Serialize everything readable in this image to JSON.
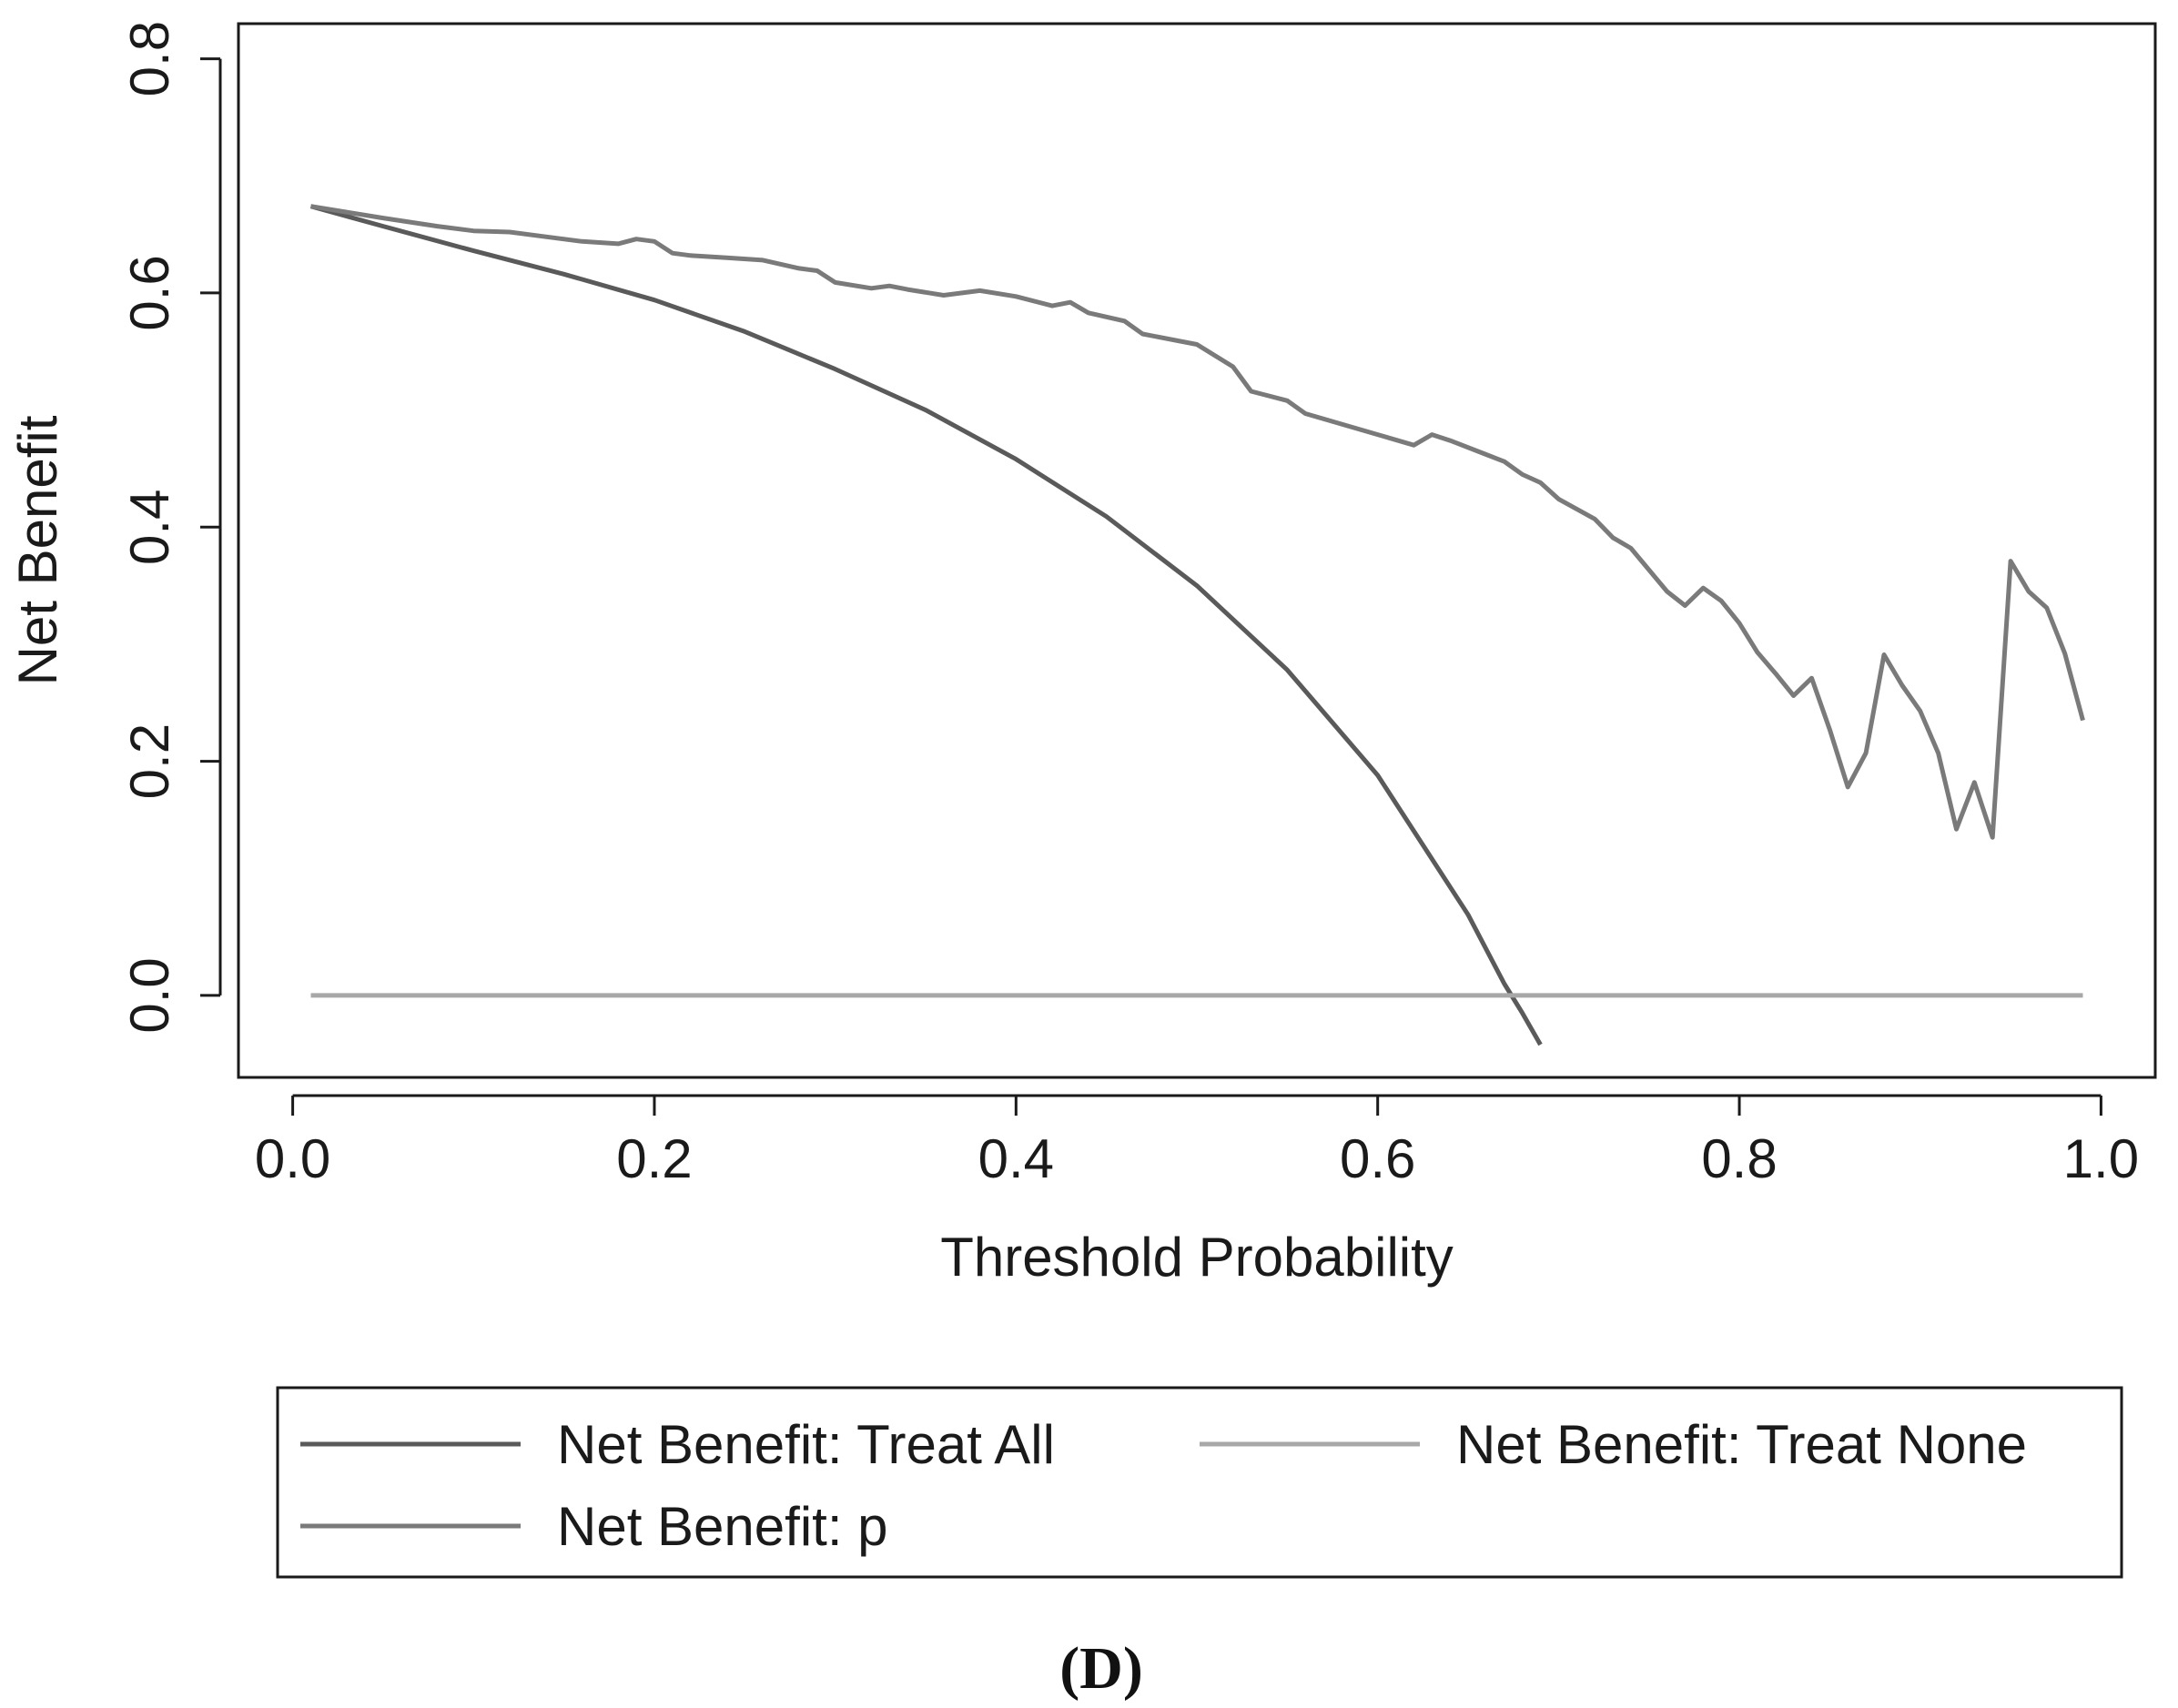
{
  "chart_data": {
    "type": "line",
    "title": "",
    "caption": "(D)",
    "xlabel": "Threshold Probability",
    "ylabel": "Net Benefit",
    "xlim": [
      -0.03,
      1.03
    ],
    "ylim": [
      -0.07,
      0.83
    ],
    "x_ticks": [
      0.0,
      0.2,
      0.4,
      0.6,
      0.8,
      1.0
    ],
    "x_tick_labels": [
      "0.0",
      "0.2",
      "0.4",
      "0.6",
      "0.8",
      "1.0"
    ],
    "y_ticks": [
      0.0,
      0.2,
      0.4,
      0.6,
      0.8
    ],
    "y_tick_labels": [
      "0.0",
      "0.2",
      "0.4",
      "0.6",
      "0.8"
    ],
    "grid": false,
    "legend_position": "bottom",
    "series": [
      {
        "name": "Net Benefit: Treat All",
        "color": "#5a5a5a",
        "x": [
          0.01,
          0.05,
          0.1,
          0.15,
          0.2,
          0.25,
          0.3,
          0.35,
          0.4,
          0.45,
          0.5,
          0.55,
          0.6,
          0.65,
          0.67,
          0.68,
          0.69
        ],
        "y": [
          0.674,
          0.657,
          0.636,
          0.616,
          0.594,
          0.567,
          0.535,
          0.5,
          0.458,
          0.409,
          0.35,
          0.278,
          0.188,
          0.069,
          0.01,
          -0.015,
          -0.042
        ]
      },
      {
        "name": "Net Benefit: Treat None",
        "color": "#a8a8a8",
        "x": [
          0.01,
          0.99
        ],
        "y": [
          0.0,
          0.0
        ]
      },
      {
        "name": "Net Benefit: p",
        "color": "#7a7a7a",
        "x": [
          0.01,
          0.05,
          0.08,
          0.1,
          0.12,
          0.14,
          0.16,
          0.18,
          0.19,
          0.2,
          0.21,
          0.22,
          0.24,
          0.26,
          0.28,
          0.29,
          0.3,
          0.32,
          0.33,
          0.34,
          0.36,
          0.38,
          0.4,
          0.42,
          0.43,
          0.44,
          0.46,
          0.47,
          0.5,
          0.52,
          0.53,
          0.55,
          0.56,
          0.6,
          0.62,
          0.63,
          0.64,
          0.66,
          0.67,
          0.68,
          0.69,
          0.7,
          0.72,
          0.73,
          0.74,
          0.76,
          0.77,
          0.78,
          0.79,
          0.8,
          0.81,
          0.82,
          0.83,
          0.84,
          0.85,
          0.86,
          0.87,
          0.88,
          0.89,
          0.9,
          0.91,
          0.92,
          0.93,
          0.94,
          0.95,
          0.96,
          0.97,
          0.98,
          0.99
        ],
        "y": [
          0.674,
          0.664,
          0.657,
          0.653,
          0.652,
          0.648,
          0.644,
          0.642,
          0.646,
          0.644,
          0.634,
          0.632,
          0.63,
          0.628,
          0.621,
          0.619,
          0.609,
          0.604,
          0.606,
          0.603,
          0.598,
          0.602,
          0.597,
          0.589,
          0.592,
          0.583,
          0.576,
          0.565,
          0.556,
          0.537,
          0.516,
          0.508,
          0.497,
          0.479,
          0.47,
          0.479,
          0.474,
          0.462,
          0.456,
          0.445,
          0.438,
          0.424,
          0.407,
          0.391,
          0.382,
          0.345,
          0.333,
          0.348,
          0.337,
          0.318,
          0.293,
          0.275,
          0.256,
          0.271,
          0.227,
          0.178,
          0.207,
          0.291,
          0.265,
          0.243,
          0.207,
          0.142,
          0.182,
          0.135,
          0.371,
          0.345,
          0.331,
          0.292,
          0.235
        ]
      }
    ]
  }
}
